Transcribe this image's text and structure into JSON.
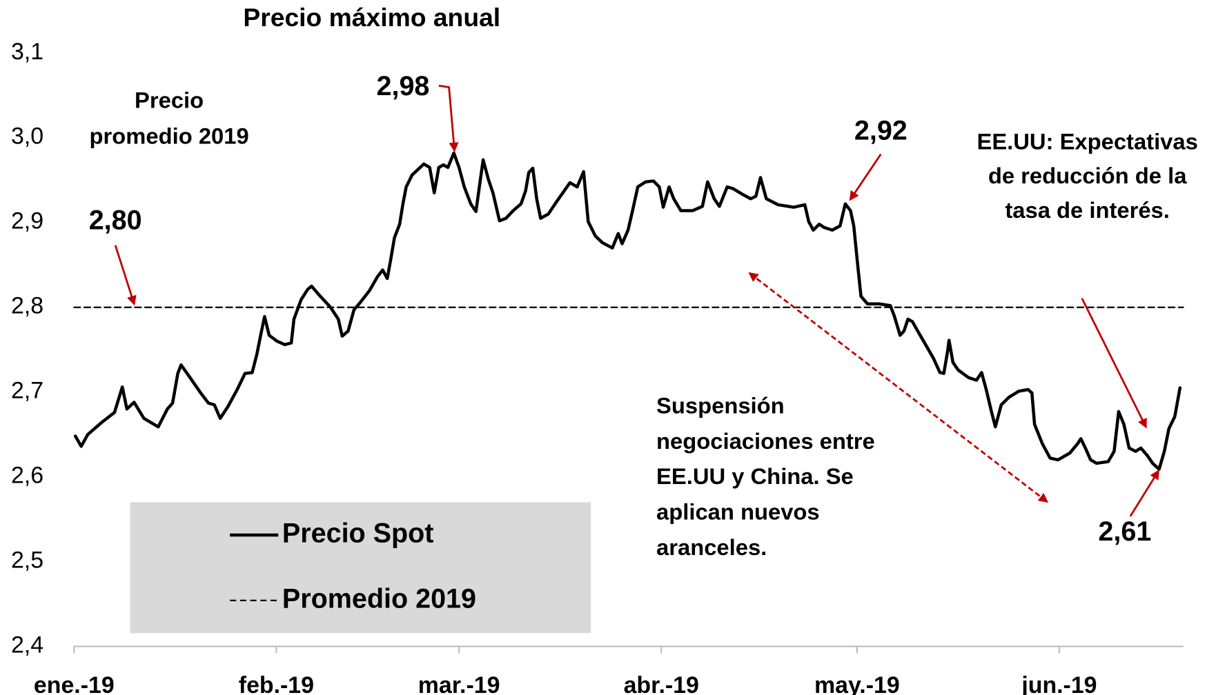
{
  "chart_data": {
    "type": "line",
    "title": "Precio máximo anual",
    "xlim": [
      0,
      170
    ],
    "xticks": [
      {
        "value": 0,
        "label": "ene.-19"
      },
      {
        "value": 31,
        "label": "feb.-19"
      },
      {
        "value": 59,
        "label": "mar.-19"
      },
      {
        "value": 90,
        "label": "abr.-19"
      },
      {
        "value": 120,
        "label": "may.-19"
      },
      {
        "value": 151,
        "label": "jun.-19"
      }
    ],
    "ylim": [
      2.4,
      3.1
    ],
    "yticks": [
      {
        "value": 2.4,
        "label": "2,4"
      },
      {
        "value": 2.5,
        "label": "2,5"
      },
      {
        "value": 2.6,
        "label": "2,6"
      },
      {
        "value": 2.7,
        "label": "2,7"
      },
      {
        "value": 2.8,
        "label": "2,8"
      },
      {
        "value": 2.9,
        "label": "2,9"
      },
      {
        "value": 3.0,
        "label": "3,0"
      },
      {
        "value": 3.1,
        "label": "3,1"
      }
    ],
    "grid": false,
    "legend": "lower left",
    "series": [
      {
        "name": "Precio Spot",
        "color": "#000000",
        "dashed": false,
        "x": [
          0.2,
          1.1,
          2.1,
          4.2,
          6.2,
          7.4,
          8.1,
          9.2,
          10.7,
          12.9,
          14.3,
          15.1,
          15.9,
          16.4,
          17.6,
          19.4,
          20.6,
          21.5,
          22.4,
          23.6,
          25.0,
          26.2,
          27.3,
          28.0,
          28.6,
          29.2,
          29.9,
          31.1,
          32.3,
          33.3,
          33.7,
          34.8,
          35.8,
          36.4,
          37.5,
          39.3,
          40.5,
          41.1,
          42.0,
          42.9,
          43.9,
          45.3,
          46.5,
          47.3,
          48.0,
          48.5,
          49.1,
          49.9,
          50.4,
          50.9,
          51.8,
          53.6,
          54.5,
          55.2,
          55.9,
          56.6,
          57.3,
          58.2,
          59.0,
          59.8,
          60.8,
          61.6,
          62.2,
          62.7,
          63.5,
          64.2,
          65.2,
          66.2,
          67.3,
          68.5,
          69.2,
          69.7,
          70.3,
          70.9,
          71.5,
          72.7,
          73.9,
          75.1,
          76.0,
          77.1,
          78.1,
          78.8,
          79.9,
          81.0,
          82.5,
          83.4,
          84.0,
          84.9,
          85.6,
          86.4,
          87.6,
          88.8,
          89.7,
          90.3,
          91.2,
          91.9,
          93.0,
          94.8,
          96.3,
          97.1,
          98.1,
          98.9,
          100.1,
          101.0,
          102.5,
          103.7,
          104.5,
          105.2,
          106.1,
          107.9,
          110.3,
          112.0,
          112.6,
          113.3,
          114.2,
          115.0,
          116.2,
          117.4,
          118.2,
          119.0,
          119.5,
          120.1,
          120.6,
          121.6,
          123.4,
          125.1,
          125.7,
          126.6,
          127.2,
          127.8,
          128.5,
          129.3,
          130.5,
          131.7,
          132.7,
          133.3,
          133.9,
          134.1,
          134.7,
          135.5,
          137.1,
          138.3,
          139.1,
          139.8,
          140.6,
          141.2,
          142.1,
          143.3,
          144.8,
          146.2,
          146.8,
          147.2,
          148.4,
          149.6,
          150.8,
          152.6,
          153.8,
          154.3,
          155.0,
          155.8,
          156.7,
          158.5,
          159.4,
          160.1,
          160.9,
          161.7,
          162.7,
          163.5,
          164.5,
          165.3,
          166.3,
          167.1,
          167.8,
          168.7,
          169.5
        ],
        "values": [
          2.648,
          2.636,
          2.65,
          2.664,
          2.676,
          2.706,
          2.68,
          2.688,
          2.669,
          2.659,
          2.68,
          2.687,
          2.722,
          2.732,
          2.719,
          2.699,
          2.687,
          2.685,
          2.669,
          2.683,
          2.703,
          2.722,
          2.723,
          2.744,
          2.767,
          2.789,
          2.767,
          2.76,
          2.756,
          2.758,
          2.786,
          2.809,
          2.821,
          2.825,
          2.815,
          2.8,
          2.786,
          2.766,
          2.772,
          2.797,
          2.806,
          2.82,
          2.836,
          2.844,
          2.834,
          2.855,
          2.882,
          2.898,
          2.922,
          2.942,
          2.956,
          2.969,
          2.965,
          2.935,
          2.965,
          2.968,
          2.965,
          2.982,
          2.965,
          2.942,
          2.922,
          2.913,
          2.947,
          2.974,
          2.951,
          2.935,
          2.902,
          2.905,
          2.914,
          2.922,
          2.937,
          2.959,
          2.964,
          2.928,
          2.905,
          2.91,
          2.924,
          2.937,
          2.947,
          2.942,
          2.96,
          2.901,
          2.884,
          2.876,
          2.87,
          2.887,
          2.875,
          2.891,
          2.914,
          2.942,
          2.948,
          2.949,
          2.942,
          2.918,
          2.942,
          2.928,
          2.914,
          2.914,
          2.919,
          2.948,
          2.928,
          2.919,
          2.942,
          2.94,
          2.933,
          2.928,
          2.931,
          2.953,
          2.928,
          2.921,
          2.918,
          2.921,
          2.901,
          2.891,
          2.898,
          2.894,
          2.891,
          2.896,
          2.922,
          2.914,
          2.896,
          2.85,
          2.813,
          2.804,
          2.804,
          2.802,
          2.79,
          2.767,
          2.772,
          2.786,
          2.783,
          2.772,
          2.756,
          2.74,
          2.723,
          2.722,
          2.749,
          2.761,
          2.735,
          2.726,
          2.717,
          2.714,
          2.723,
          2.703,
          2.677,
          2.659,
          2.685,
          2.694,
          2.701,
          2.703,
          2.699,
          2.662,
          2.639,
          2.622,
          2.62,
          2.628,
          2.639,
          2.645,
          2.634,
          2.62,
          2.616,
          2.618,
          2.63,
          2.677,
          2.662,
          2.634,
          2.63,
          2.634,
          2.625,
          2.616,
          2.609,
          2.63,
          2.657,
          2.671,
          2.705
        ]
      },
      {
        "name": "Promedio 2019",
        "color": "#000000",
        "dashed": true,
        "x": [
          0,
          170
        ],
        "values": [
          2.8,
          2.8
        ]
      }
    ],
    "annotations": [
      {
        "lines": [
          "Precio",
          "promedio 2019"
        ]
      },
      {
        "lines": [
          "2,80"
        ]
      },
      {
        "lines": [
          "2,98"
        ]
      },
      {
        "lines": [
          "2,92"
        ]
      },
      {
        "lines": [
          "EE.UU: Expectativas",
          "de reducción de la",
          "tasa de interés."
        ]
      },
      {
        "lines": [
          "Suspensión",
          "negociaciones entre",
          "EE.UU y China. Se",
          "aplican nuevos",
          "aranceles."
        ]
      },
      {
        "lines": [
          "2,61"
        ]
      }
    ],
    "annotation_color": "#c00000",
    "legend_color": "#d9d9d9"
  }
}
